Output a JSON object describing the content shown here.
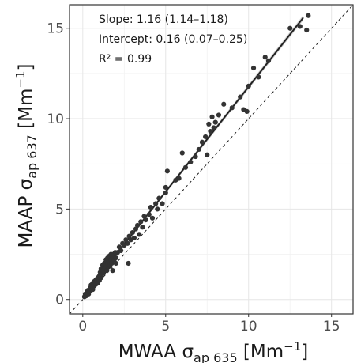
{
  "chart_data": {
    "type": "scatter",
    "title": "",
    "xlabel": {
      "main": "MWAA σ",
      "sub": "ap 635",
      "unit_pre": " [Mm",
      "unit_sup": "−1",
      "unit_post": "]"
    },
    "ylabel": {
      "main": "MAAP σ",
      "sub": "ap 637",
      "unit_pre": " [Mm",
      "unit_sup": "−1",
      "unit_post": "]"
    },
    "xlim": [
      -0.8,
      16.3
    ],
    "ylim": [
      -0.8,
      16.3
    ],
    "xticks": [
      0,
      5,
      10,
      15
    ],
    "yticks": [
      0,
      5,
      10,
      15
    ],
    "tick_labels_x": [
      "0",
      "5",
      "10",
      "15"
    ],
    "tick_labels_y": [
      "0",
      "5",
      "10",
      "15"
    ],
    "grid": true,
    "annotations": [
      "Slope: 1.16 (1.14–1.18)",
      "Intercept: 0.16 (0.07–0.25)",
      "R² = 0.99"
    ],
    "fit_line": {
      "slope": 1.16,
      "intercept": 0.16,
      "x_range": [
        0.1,
        13.3
      ],
      "ci_halfwidth": 0.12
    },
    "reference_line": {
      "slope": 1,
      "intercept": 0,
      "style": "dashed"
    },
    "points": [
      [
        0.1,
        0.15
      ],
      [
        0.15,
        0.3
      ],
      [
        0.2,
        0.2
      ],
      [
        0.25,
        0.4
      ],
      [
        0.3,
        0.35
      ],
      [
        0.3,
        0.5
      ],
      [
        0.35,
        0.3
      ],
      [
        0.4,
        0.55
      ],
      [
        0.4,
        0.45
      ],
      [
        0.45,
        0.65
      ],
      [
        0.5,
        0.6
      ],
      [
        0.5,
        0.8
      ],
      [
        0.55,
        0.7
      ],
      [
        0.6,
        0.9
      ],
      [
        0.6,
        0.55
      ],
      [
        0.65,
        0.8
      ],
      [
        0.7,
        1.0
      ],
      [
        0.7,
        0.75
      ],
      [
        0.75,
        0.9
      ],
      [
        0.8,
        1.1
      ],
      [
        0.8,
        0.85
      ],
      [
        0.85,
        1.0
      ],
      [
        0.9,
        1.2
      ],
      [
        0.9,
        0.9
      ],
      [
        0.95,
        1.1
      ],
      [
        1.0,
        1.3
      ],
      [
        1.0,
        1.05
      ],
      [
        1.05,
        1.5
      ],
      [
        1.1,
        1.2
      ],
      [
        1.1,
        1.7
      ],
      [
        1.15,
        1.4
      ],
      [
        1.2,
        1.9
      ],
      [
        1.2,
        1.6
      ],
      [
        1.25,
        1.45
      ],
      [
        1.3,
        1.8
      ],
      [
        1.3,
        2.0
      ],
      [
        1.35,
        1.7
      ],
      [
        1.4,
        1.9
      ],
      [
        1.4,
        2.2
      ],
      [
        1.45,
        1.6
      ],
      [
        1.5,
        2.0
      ],
      [
        1.5,
        2.3
      ],
      [
        1.55,
        1.8
      ],
      [
        1.6,
        2.1
      ],
      [
        1.6,
        2.4
      ],
      [
        1.65,
        1.9
      ],
      [
        1.7,
        2.2
      ],
      [
        1.7,
        2.5
      ],
      [
        1.75,
        2.0
      ],
      [
        1.8,
        2.3
      ],
      [
        1.8,
        1.6
      ],
      [
        1.85,
        2.5
      ],
      [
        1.9,
        2.2
      ],
      [
        1.95,
        2.6
      ],
      [
        2.0,
        2.3
      ],
      [
        2.0,
        2.0
      ],
      [
        2.1,
        2.6
      ],
      [
        2.2,
        2.9
      ],
      [
        2.3,
        2.7
      ],
      [
        2.4,
        3.1
      ],
      [
        2.5,
        3.0
      ],
      [
        2.6,
        3.3
      ],
      [
        2.7,
        3.1
      ],
      [
        2.75,
        2.0
      ],
      [
        2.8,
        3.5
      ],
      [
        2.9,
        3.3
      ],
      [
        3.0,
        3.7
      ],
      [
        3.1,
        3.4
      ],
      [
        3.2,
        3.9
      ],
      [
        3.3,
        4.1
      ],
      [
        3.4,
        3.6
      ],
      [
        3.5,
        4.3
      ],
      [
        3.6,
        4.0
      ],
      [
        3.7,
        4.6
      ],
      [
        3.8,
        4.4
      ],
      [
        4.0,
        4.7
      ],
      [
        4.1,
        5.1
      ],
      [
        4.2,
        4.5
      ],
      [
        4.4,
        5.3
      ],
      [
        4.5,
        5.0
      ],
      [
        4.6,
        5.6
      ],
      [
        4.8,
        5.3
      ],
      [
        5.0,
        5.9
      ],
      [
        5.0,
        6.2
      ],
      [
        5.1,
        7.1
      ],
      [
        5.6,
        6.6
      ],
      [
        5.8,
        6.7
      ],
      [
        6.0,
        8.1
      ],
      [
        6.2,
        7.3
      ],
      [
        6.5,
        7.6
      ],
      [
        6.8,
        7.9
      ],
      [
        7.0,
        8.3
      ],
      [
        7.2,
        8.7
      ],
      [
        7.4,
        9.0
      ],
      [
        7.5,
        8.0
      ],
      [
        7.6,
        9.7
      ],
      [
        7.7,
        9.3
      ],
      [
        7.8,
        10.1
      ],
      [
        7.9,
        9.5
      ],
      [
        8.0,
        9.8
      ],
      [
        8.2,
        10.2
      ],
      [
        8.5,
        10.8
      ],
      [
        9.0,
        10.6
      ],
      [
        9.5,
        11.2
      ],
      [
        9.7,
        10.5
      ],
      [
        9.9,
        10.4
      ],
      [
        10.0,
        11.8
      ],
      [
        10.3,
        12.8
      ],
      [
        10.6,
        12.3
      ],
      [
        11.0,
        13.4
      ],
      [
        11.2,
        13.2
      ],
      [
        12.5,
        15.0
      ],
      [
        13.1,
        15.1
      ],
      [
        13.5,
        14.9
      ],
      [
        13.6,
        15.7
      ]
    ]
  }
}
